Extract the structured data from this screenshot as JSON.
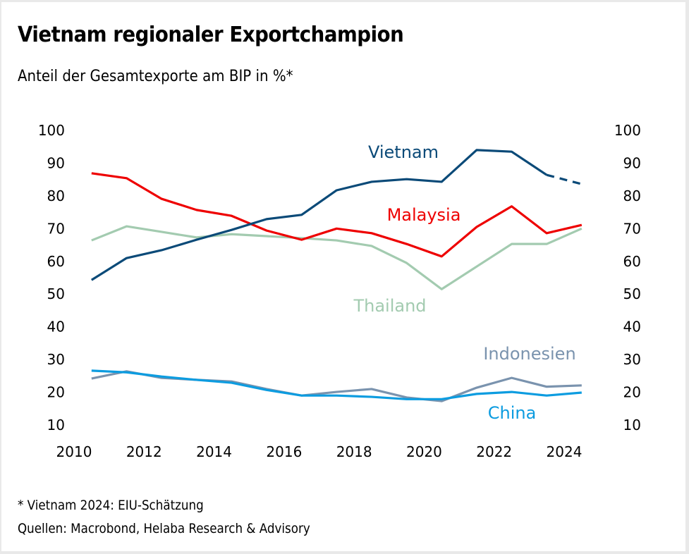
{
  "header": {
    "title": "Vietnam regionaler Exportchampion",
    "subtitle": "Anteil der Gesamtexporte am BIP in %*"
  },
  "footer": {
    "footnote": "* Vietnam 2024: EIU-Schätzung",
    "source": "Quellen: Macrobond, Helaba Research & Advisory"
  },
  "chart_data": {
    "type": "line",
    "title": "Vietnam regionaler Exportchampion",
    "subtitle": "Anteil der Gesamtexporte am BIP in %*",
    "xlabel": "",
    "ylabel": "",
    "x": [
      2010.5,
      2011.5,
      2012.5,
      2013.5,
      2014.5,
      2015.5,
      2016.5,
      2017.5,
      2018.5,
      2019.5,
      2020.5,
      2021.5,
      2022.5,
      2023.5,
      2024.5
    ],
    "xlim": [
      2010,
      2025
    ],
    "ylim": [
      10,
      100
    ],
    "x_ticks": [
      "2010",
      "2012",
      "2014",
      "2016",
      "2018",
      "2020",
      "2022",
      "2024"
    ],
    "y_ticks_left": [
      "100",
      "90",
      "80",
      "70",
      "60",
      "50",
      "40",
      "30",
      "20",
      "10"
    ],
    "y_ticks_right": [
      "100",
      "90",
      "80",
      "70",
      "60",
      "50",
      "40",
      "30",
      "20",
      "10"
    ],
    "grid": false,
    "legend": "inline labels",
    "series": [
      {
        "name": "Vietnam",
        "color": "#0b4a78",
        "dashed_from_index": 13,
        "values": [
          54.3,
          61.0,
          63.4,
          66.6,
          69.6,
          72.9,
          74.2,
          81.7,
          84.3,
          85.1,
          84.3,
          94.0,
          93.5,
          86.4,
          83.6
        ]
      },
      {
        "name": "Malaysia",
        "color": "#ee0000",
        "values": [
          86.9,
          85.4,
          79.1,
          75.7,
          73.9,
          69.4,
          66.6,
          70.0,
          68.6,
          65.3,
          61.5,
          70.5,
          76.8,
          68.6,
          71.1
        ]
      },
      {
        "name": "Thailand",
        "color": "#a3cbb0",
        "values": [
          66.4,
          70.7,
          69.0,
          67.3,
          68.3,
          67.7,
          67.1,
          66.4,
          64.7,
          59.5,
          51.5,
          58.4,
          65.3,
          65.3,
          70.0
        ]
      },
      {
        "name": "Indonesien",
        "color": "#7a93ae",
        "values": [
          24.2,
          26.4,
          24.4,
          23.8,
          23.3,
          21.0,
          19.0,
          20.1,
          21.0,
          18.4,
          17.3,
          21.4,
          24.4,
          21.7,
          22.1
        ]
      },
      {
        "name": "China",
        "color": "#0c9ce0",
        "values": [
          26.6,
          26.1,
          24.8,
          23.8,
          22.9,
          20.7,
          19.0,
          19.0,
          18.6,
          17.9,
          17.9,
          19.5,
          20.1,
          19.0,
          19.9
        ]
      }
    ],
    "annotations": [
      {
        "text": "Vietnam",
        "series": "Vietnam"
      },
      {
        "text": "Malaysia",
        "series": "Malaysia"
      },
      {
        "text": "Thailand",
        "series": "Thailand"
      },
      {
        "text": "Indonesien",
        "series": "Indonesien"
      },
      {
        "text": "China",
        "series": "China"
      }
    ]
  }
}
